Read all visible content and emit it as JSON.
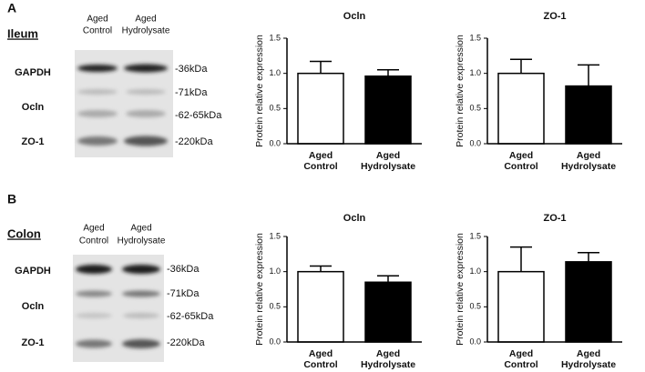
{
  "panels": [
    {
      "label": "A",
      "tissue": "Ileum",
      "lanes": [
        [
          "Aged",
          "Control"
        ],
        [
          "Aged",
          "Hydrolysate"
        ]
      ],
      "bands": [
        "GAPDH",
        "Ocln",
        "ZO-1"
      ],
      "markers": [
        "-36kDa",
        "-71kDa",
        "-62-65kDa",
        "-220kDa"
      ]
    },
    {
      "label": "B",
      "tissue": "Colon",
      "lanes": [
        [
          "Aged",
          "Control"
        ],
        [
          "Aged",
          "Hydrolysate"
        ]
      ],
      "bands": [
        "GAPDH",
        "Ocln",
        "ZO-1"
      ],
      "markers": [
        "-36kDa",
        "-71kDa",
        "-62-65kDa",
        "-220kDa"
      ]
    }
  ],
  "chart_data": [
    {
      "type": "bar",
      "title": "Ocln",
      "ylabel": "Protein relative expression",
      "categories": [
        [
          "Aged",
          "Control"
        ],
        [
          "Aged",
          "Hydrolysate"
        ]
      ],
      "values": [
        1.0,
        0.96
      ],
      "errors": [
        0.17,
        0.09
      ],
      "colors": [
        "#ffffff",
        "#000000"
      ],
      "ylim": [
        0,
        1.5
      ],
      "yticks": [
        {
          "value": 0,
          "label": "0.0"
        },
        0.5,
        {
          "value": 1,
          "label": "1.0"
        },
        1.5
      ]
    },
    {
      "type": "bar",
      "title": "ZO-1",
      "ylabel": "Protein relative expression",
      "categories": [
        [
          "Aged",
          "Control"
        ],
        [
          "Aged",
          "Hydrolysate"
        ]
      ],
      "values": [
        1.0,
        0.82
      ],
      "errors": [
        0.2,
        0.3
      ],
      "colors": [
        "#ffffff",
        "#000000"
      ],
      "ylim": [
        0,
        1.5
      ],
      "yticks": [
        {
          "value": 0,
          "label": "0.0"
        },
        0.5,
        {
          "value": 1,
          "label": "1.0"
        },
        1.5
      ]
    },
    {
      "type": "bar",
      "title": "Ocln",
      "ylabel": "Protein relative expression",
      "categories": [
        [
          "Aged",
          "Control"
        ],
        [
          "Aged",
          "Hydrolysate"
        ]
      ],
      "values": [
        1.0,
        0.85
      ],
      "errors": [
        0.08,
        0.09
      ],
      "colors": [
        "#ffffff",
        "#000000"
      ],
      "ylim": [
        0,
        1.5
      ],
      "yticks": [
        {
          "value": 0,
          "label": "0.0"
        },
        0.5,
        {
          "value": 1,
          "label": "1.0"
        },
        1.5
      ]
    },
    {
      "type": "bar",
      "title": "ZO-1",
      "ylabel": "Protein relative expression",
      "categories": [
        [
          "Aged",
          "Control"
        ],
        [
          "Aged",
          "Hydrolysate"
        ]
      ],
      "values": [
        1.0,
        1.14
      ],
      "errors": [
        0.35,
        0.13
      ],
      "colors": [
        "#ffffff",
        "#000000"
      ],
      "ylim": [
        0,
        1.5
      ],
      "yticks": [
        {
          "value": 0,
          "label": "0.0"
        },
        0.5,
        {
          "value": 1,
          "label": "1.0"
        },
        1.5
      ]
    }
  ]
}
